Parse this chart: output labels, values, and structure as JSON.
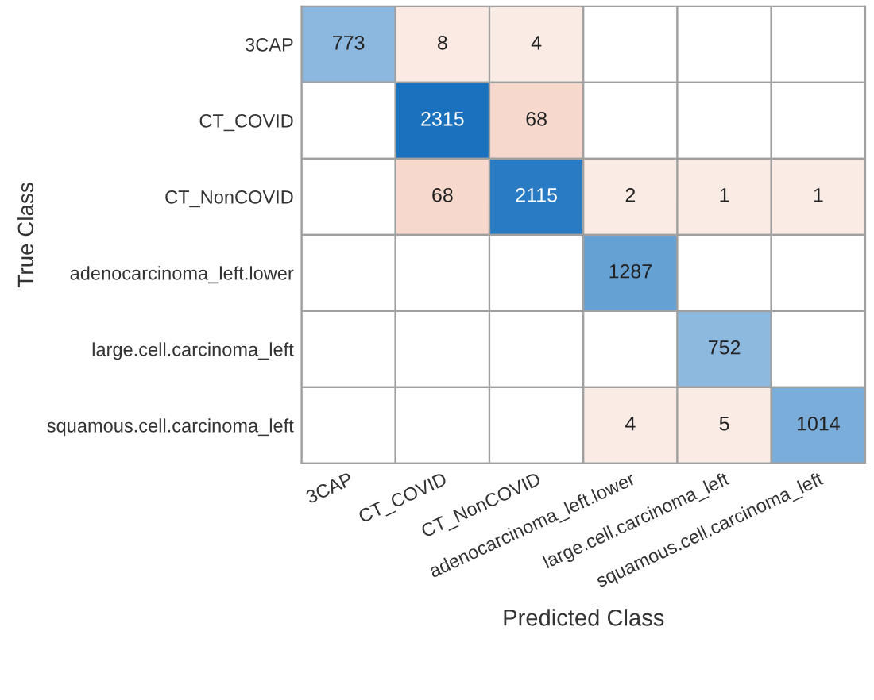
{
  "chart_data": {
    "type": "heatmap",
    "xlabel": "Predicted Class",
    "ylabel": "True Class",
    "categories": [
      "3CAP",
      "CT_COVID",
      "CT_NonCOVID",
      "adenocarcinoma_left.lower",
      "large.cell.carcinoma_left",
      "squamous.cell.carcinoma_left"
    ],
    "y_categories": [
      "3CAP",
      "CT_COVID",
      "CT_NonCOVID",
      "adenocarcinoma_left.lower",
      "large.cell.carcinoma_left",
      "squamous.cell.carcinoma_left"
    ],
    "cells": [
      [
        773,
        8,
        4,
        null,
        null,
        null
      ],
      [
        null,
        2315,
        68,
        null,
        null,
        null
      ],
      [
        null,
        68,
        2115,
        2,
        1,
        1
      ],
      [
        null,
        null,
        null,
        1287,
        null,
        null
      ],
      [
        null,
        null,
        null,
        null,
        752,
        null
      ],
      [
        null,
        null,
        null,
        4,
        5,
        1014
      ]
    ],
    "colors": [
      "#1a72bf",
      "#f6d9cc"
    ],
    "data_labels": true
  }
}
